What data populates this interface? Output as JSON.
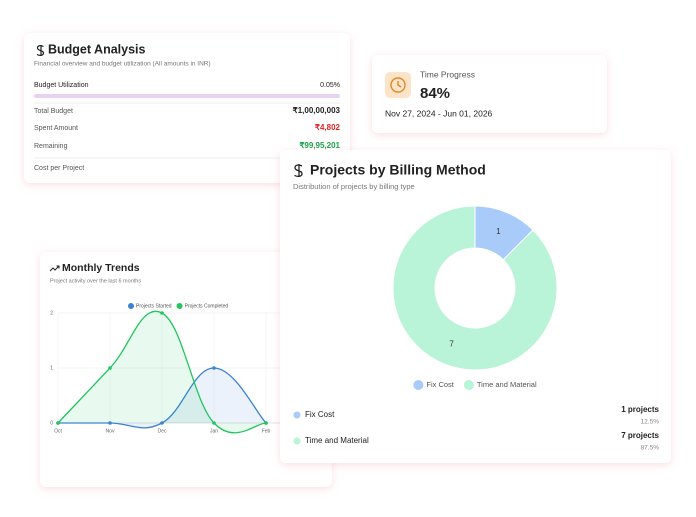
{
  "budget": {
    "title": "Budget Analysis",
    "subtitle": "Financial overview and budget utilization (All amounts in INR)",
    "utilization_label": "Budget Utilization",
    "utilization": "0.05%",
    "rows": [
      {
        "label": "Total Budget",
        "value": "₹1,00,00,003"
      },
      {
        "label": "Spent Amount",
        "value": "₹4,802"
      },
      {
        "label": "Remaining",
        "value": "₹99,95,201"
      },
      {
        "label": "Cost per Project"
      }
    ]
  },
  "time": {
    "title": "Time Progress",
    "value": "84%",
    "range": "Nov 27, 2024 - Jun 01, 2026"
  },
  "billing": {
    "details": [
      {
        "name": "Fix Cost",
        "count": "1 projects",
        "share": "12.5%"
      },
      {
        "name": "Time and Material",
        "count": "7 projects",
        "share": "87.5%"
      }
    ]
  },
  "chart_data": [
    {
      "type": "line",
      "title": "Monthly Trends",
      "subtitle": "Project activity over the last 6 months",
      "categories": [
        "Oct",
        "Nov",
        "Dec",
        "Jan",
        "Feb"
      ],
      "series": [
        {
          "name": "Projects Started",
          "color": "#3b82d6",
          "values": [
            0,
            0,
            0,
            1,
            0
          ]
        },
        {
          "name": "Projects Completed",
          "color": "#22c55e",
          "values": [
            0,
            1,
            2,
            0,
            0
          ]
        }
      ],
      "ylim": [
        0,
        2
      ],
      "yticks": [
        0,
        1,
        2
      ],
      "grid": true,
      "legend": "top"
    },
    {
      "type": "donut",
      "title": "Projects by Billing Method",
      "subtitle": "Distribution of projects by billing type",
      "categories": [
        "Fix Cost",
        "Time and Material"
      ],
      "values": [
        1,
        7
      ],
      "colors": [
        "#a8cbf9",
        "#b9f3d8"
      ],
      "legend": "bottom"
    }
  ]
}
